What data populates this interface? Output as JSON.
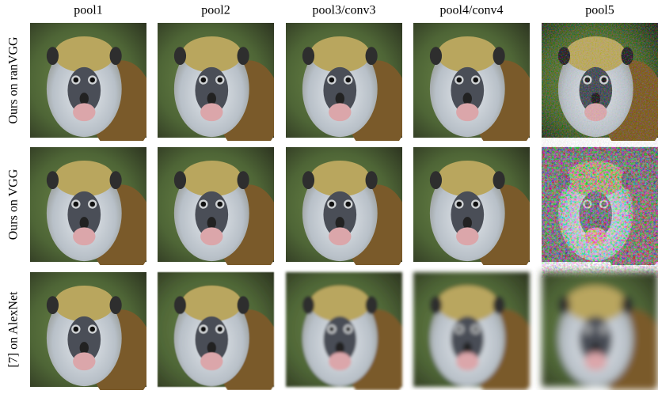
{
  "columns": [
    "pool1",
    "pool2",
    "pool3/conv3",
    "pool4/conv4",
    "pool5"
  ],
  "rows": [
    "Ours on ranVGG",
    "Ours on VGG",
    "[7] on AlexNet"
  ]
}
